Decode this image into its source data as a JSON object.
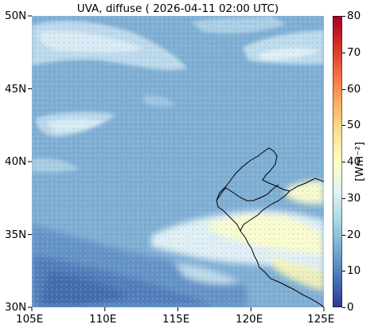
{
  "title": "UVA, diffuse ( 2026-04-11 02:00 UTC)",
  "map": {
    "lon_ticks": [
      "105E",
      "110E",
      "115E",
      "120E",
      "125E"
    ],
    "lat_ticks": [
      "30N",
      "35N",
      "40N",
      "45N",
      "50N"
    ],
    "lon_range": [
      105,
      125
    ],
    "lat_range": [
      30,
      50
    ]
  },
  "colorbar": {
    "label": "[Wm⁻²]",
    "ticks": [
      "0",
      "10",
      "20",
      "30",
      "40",
      "50",
      "60",
      "70",
      "80"
    ],
    "range": [
      0,
      80
    ],
    "colormap": "RdYlBu_r",
    "colors": [
      "#313695",
      "#4575b4",
      "#74add1",
      "#abd9e9",
      "#e0f3f8",
      "#ffffbf",
      "#fee090",
      "#fdae61",
      "#f46d43",
      "#d73027",
      "#a50026"
    ]
  },
  "colors": {
    "background_field": "#7faed3",
    "coastline": "#000000"
  }
}
